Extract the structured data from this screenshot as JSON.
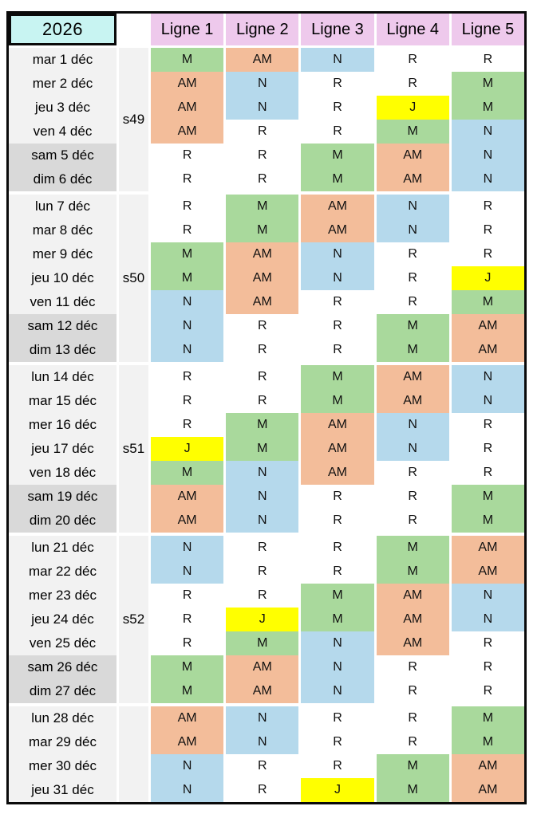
{
  "title_year": "2026",
  "columns": [
    "Ligne 1",
    "Ligne 2",
    "Ligne 3",
    "Ligne 4",
    "Ligne 5"
  ],
  "shift_colors": {
    "M": "#a9d99c",
    "AM": "#f3bd9a",
    "N": "#b5d9ec",
    "R": "#ffffff",
    "J": "#ffff00"
  },
  "theme": {
    "year_cell_bg": "#c8f4f2",
    "column_header_bg": "#eec9ec",
    "weekday_date_bg": "#f2f2f2",
    "weekend_date_bg": "#d9d9d9",
    "week_column_bg": "#f2f2f2",
    "border_color": "#0a0a0a"
  },
  "weeks": [
    {
      "label": "s49",
      "days": [
        {
          "date": "mar 1 déc",
          "weekend": false,
          "shifts": [
            "M",
            "AM",
            "N",
            "R",
            "R"
          ]
        },
        {
          "date": "mer 2 déc",
          "weekend": false,
          "shifts": [
            "AM",
            "N",
            "R",
            "R",
            "M"
          ]
        },
        {
          "date": "jeu 3 déc",
          "weekend": false,
          "shifts": [
            "AM",
            "N",
            "R",
            "J",
            "M"
          ]
        },
        {
          "date": "ven 4 déc",
          "weekend": false,
          "shifts": [
            "AM",
            "R",
            "R",
            "M",
            "N"
          ]
        },
        {
          "date": "sam 5 déc",
          "weekend": true,
          "shifts": [
            "R",
            "R",
            "M",
            "AM",
            "N"
          ]
        },
        {
          "date": "dim 6 déc",
          "weekend": true,
          "shifts": [
            "R",
            "R",
            "M",
            "AM",
            "N"
          ]
        }
      ]
    },
    {
      "label": "s50",
      "days": [
        {
          "date": "lun 7 déc",
          "weekend": false,
          "shifts": [
            "R",
            "M",
            "AM",
            "N",
            "R"
          ]
        },
        {
          "date": "mar 8 déc",
          "weekend": false,
          "shifts": [
            "R",
            "M",
            "AM",
            "N",
            "R"
          ]
        },
        {
          "date": "mer 9 déc",
          "weekend": false,
          "shifts": [
            "M",
            "AM",
            "N",
            "R",
            "R"
          ]
        },
        {
          "date": "jeu 10 déc",
          "weekend": false,
          "shifts": [
            "M",
            "AM",
            "N",
            "R",
            "J"
          ]
        },
        {
          "date": "ven 11 déc",
          "weekend": false,
          "shifts": [
            "N",
            "AM",
            "R",
            "R",
            "M"
          ]
        },
        {
          "date": "sam 12 déc",
          "weekend": true,
          "shifts": [
            "N",
            "R",
            "R",
            "M",
            "AM"
          ]
        },
        {
          "date": "dim 13 déc",
          "weekend": true,
          "shifts": [
            "N",
            "R",
            "R",
            "M",
            "AM"
          ]
        }
      ]
    },
    {
      "label": "s51",
      "days": [
        {
          "date": "lun 14 déc",
          "weekend": false,
          "shifts": [
            "R",
            "R",
            "M",
            "AM",
            "N"
          ]
        },
        {
          "date": "mar 15 déc",
          "weekend": false,
          "shifts": [
            "R",
            "R",
            "M",
            "AM",
            "N"
          ]
        },
        {
          "date": "mer 16 déc",
          "weekend": false,
          "shifts": [
            "R",
            "M",
            "AM",
            "N",
            "R"
          ]
        },
        {
          "date": "jeu 17 déc",
          "weekend": false,
          "shifts": [
            "J",
            "M",
            "AM",
            "N",
            "R"
          ]
        },
        {
          "date": "ven 18 déc",
          "weekend": false,
          "shifts": [
            "M",
            "N",
            "AM",
            "R",
            "R"
          ]
        },
        {
          "date": "sam 19 déc",
          "weekend": true,
          "shifts": [
            "AM",
            "N",
            "R",
            "R",
            "M"
          ]
        },
        {
          "date": "dim 20 déc",
          "weekend": true,
          "shifts": [
            "AM",
            "N",
            "R",
            "R",
            "M"
          ]
        }
      ]
    },
    {
      "label": "s52",
      "days": [
        {
          "date": "lun 21 déc",
          "weekend": false,
          "shifts": [
            "N",
            "R",
            "R",
            "M",
            "AM"
          ]
        },
        {
          "date": "mar 22 déc",
          "weekend": false,
          "shifts": [
            "N",
            "R",
            "R",
            "M",
            "AM"
          ]
        },
        {
          "date": "mer 23 déc",
          "weekend": false,
          "shifts": [
            "R",
            "R",
            "M",
            "AM",
            "N"
          ]
        },
        {
          "date": "jeu 24 déc",
          "weekend": false,
          "shifts": [
            "R",
            "J",
            "M",
            "AM",
            "N"
          ]
        },
        {
          "date": "ven 25 déc",
          "weekend": false,
          "shifts": [
            "R",
            "M",
            "N",
            "AM",
            "R"
          ]
        },
        {
          "date": "sam 26 déc",
          "weekend": true,
          "shifts": [
            "M",
            "AM",
            "N",
            "R",
            "R"
          ]
        },
        {
          "date": "dim 27 déc",
          "weekend": true,
          "shifts": [
            "M",
            "AM",
            "N",
            "R",
            "R"
          ]
        }
      ]
    },
    {
      "label": "",
      "days": [
        {
          "date": "lun 28 déc",
          "weekend": false,
          "shifts": [
            "AM",
            "N",
            "R",
            "R",
            "M"
          ]
        },
        {
          "date": "mar 29 déc",
          "weekend": false,
          "shifts": [
            "AM",
            "N",
            "R",
            "R",
            "M"
          ]
        },
        {
          "date": "mer 30 déc",
          "weekend": false,
          "shifts": [
            "N",
            "R",
            "R",
            "M",
            "AM"
          ]
        },
        {
          "date": "jeu 31 déc",
          "weekend": false,
          "shifts": [
            "N",
            "R",
            "J",
            "M",
            "AM"
          ]
        }
      ]
    }
  ]
}
